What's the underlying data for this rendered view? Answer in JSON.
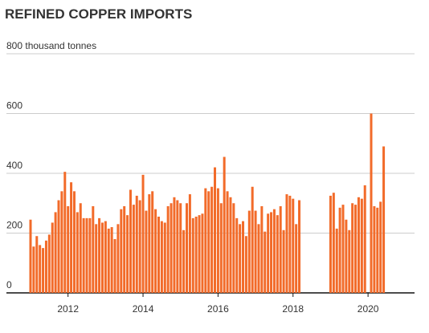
{
  "chart_data": {
    "type": "bar",
    "title": "REFINED COPPER IMPORTS",
    "categories": [
      null,
      null,
      null,
      null,
      null,
      null,
      null,
      null,
      null,
      null,
      null,
      null,
      "2012",
      null,
      null,
      null,
      null,
      null,
      null,
      null,
      null,
      null,
      null,
      null,
      null,
      null,
      null,
      null,
      null,
      null,
      null,
      null,
      null,
      null,
      null,
      null,
      "2014",
      null,
      null,
      null,
      null,
      null,
      null,
      null,
      null,
      null,
      null,
      null,
      null,
      null,
      null,
      null,
      null,
      null,
      null,
      null,
      null,
      null,
      null,
      null,
      "2016",
      null,
      null,
      null,
      null,
      null,
      null,
      null,
      null,
      null,
      null,
      null,
      null,
      null,
      null,
      null,
      null,
      null,
      null,
      null,
      null,
      null,
      null,
      null,
      "2018",
      null,
      null,
      null,
      null,
      null,
      null,
      null,
      null,
      null,
      null,
      null,
      null,
      null,
      null,
      null,
      null,
      null,
      null,
      null,
      null,
      null,
      null,
      null,
      "2020",
      null,
      null,
      null,
      null,
      null
    ],
    "values": [
      245,
      155,
      190,
      160,
      150,
      175,
      195,
      235,
      270,
      310,
      340,
      405,
      290,
      370,
      340,
      270,
      300,
      250,
      250,
      250,
      290,
      230,
      250,
      235,
      240,
      215,
      220,
      180,
      230,
      280,
      290,
      260,
      345,
      295,
      325,
      310,
      395,
      275,
      330,
      340,
      280,
      255,
      240,
      235,
      290,
      300,
      320,
      310,
      300,
      210,
      300,
      330,
      250,
      255,
      260,
      265,
      350,
      340,
      355,
      420,
      350,
      300,
      455,
      340,
      320,
      300,
      250,
      230,
      240,
      190,
      275,
      355,
      275,
      230,
      290,
      205,
      265,
      270,
      280,
      260,
      290,
      210,
      330,
      325,
      315,
      230,
      310,
      null,
      null,
      null,
      null,
      null,
      null,
      null,
      null,
      null,
      325,
      335,
      215,
      285,
      295,
      245,
      210,
      300,
      295,
      320,
      315,
      360,
      null,
      600,
      290,
      285,
      305,
      490
    ],
    "color": "#f26b2a",
    "ylim": [
      0,
      800
    ],
    "yticks": [
      0,
      200,
      400,
      600,
      {
        "value": 800,
        "label": "800 thousand tonnes"
      }
    ],
    "grid": true
  }
}
